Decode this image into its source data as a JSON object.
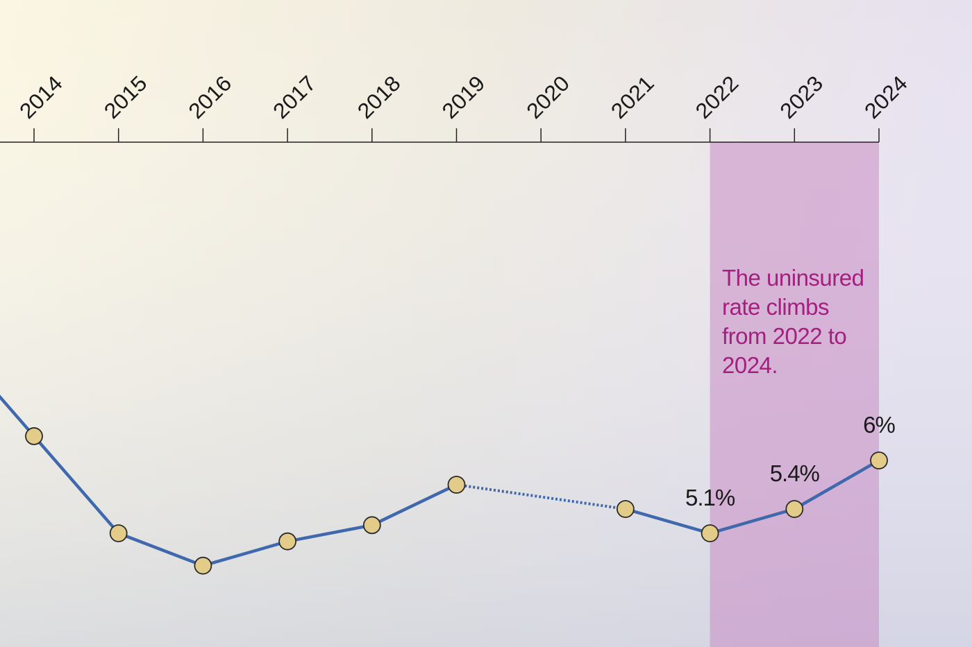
{
  "chart_data": {
    "type": "line",
    "title": "",
    "xlabel": "",
    "ylabel": "",
    "x_tick_labels": [
      "2014",
      "2015",
      "2016",
      "2017",
      "2018",
      "2019",
      "2020",
      "2021",
      "2022",
      "2023",
      "2024"
    ],
    "series": [
      {
        "points": [
          {
            "x": 2013,
            "y": 7.5
          },
          {
            "x": 2014,
            "y": 6.3
          },
          {
            "x": 2015,
            "y": 5.1
          },
          {
            "x": 2016,
            "y": 4.7
          },
          {
            "x": 2017,
            "y": 5.0
          },
          {
            "x": 2018,
            "y": 5.2
          },
          {
            "x": 2019,
            "y": 5.7
          },
          {
            "x": 2021,
            "y": 5.4
          },
          {
            "x": 2022,
            "y": 5.1
          },
          {
            "x": 2023,
            "y": 5.4
          },
          {
            "x": 2024,
            "y": 6.0
          }
        ],
        "dotted_gap": [
          2019,
          2021
        ],
        "color": "#3f68ad",
        "marker_color": "#e3cc8a"
      }
    ],
    "data_labels": [
      {
        "x": 2022,
        "text": "5.1%"
      },
      {
        "x": 2023,
        "text": "5.4%"
      },
      {
        "x": 2024,
        "text": "6%"
      }
    ],
    "highlight": {
      "x_range": [
        2022,
        2024
      ],
      "color": "#c98cc4",
      "annotation": [
        "The uninsured",
        "rate climbs",
        "from 2022 to",
        "2024."
      ],
      "annotation_color": "#a3207f"
    },
    "x_axis_position": "top",
    "grid": false,
    "legend": "none"
  }
}
